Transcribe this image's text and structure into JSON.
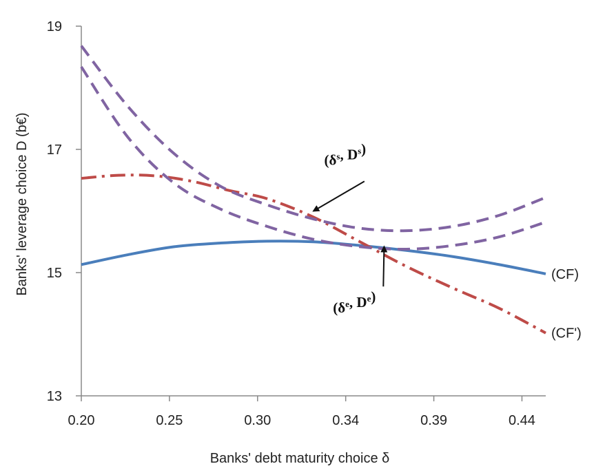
{
  "chart_data": {
    "type": "line",
    "xlabel": "Banks' debt maturity choice δ",
    "ylabel": "Banks' leverage choice D (b€)",
    "xlim": [
      0.2,
      0.45
    ],
    "ylim": [
      13,
      19
    ],
    "x_ticks": [
      "0.20",
      "0.25",
      "0.30",
      "0.34",
      "0.39",
      "0.44"
    ],
    "y_ticks": [
      "13",
      "15",
      "17",
      "19"
    ],
    "y_tick_values": [
      13,
      15,
      17,
      19
    ],
    "grid": false,
    "colors": {
      "cf": "#4a7ebb",
      "cf_prime": "#be4b48",
      "dashed": "#8064a2",
      "axis": "#888888",
      "arrow": "#111111"
    },
    "series": [
      {
        "name": "(CF)",
        "style": "solid",
        "x": [
          0.2,
          0.225,
          0.25,
          0.275,
          0.3,
          0.325,
          0.35,
          0.375,
          0.4,
          0.425,
          0.45
        ],
        "y": [
          15.13,
          15.29,
          15.42,
          15.48,
          15.51,
          15.5,
          15.44,
          15.36,
          15.26,
          15.13,
          14.98
        ]
      },
      {
        "name": "(CF')",
        "style": "dashdot",
        "x": [
          0.2,
          0.22,
          0.24,
          0.26,
          0.28,
          0.3,
          0.325,
          0.35,
          0.375,
          0.4,
          0.425,
          0.45
        ],
        "y": [
          16.53,
          16.58,
          16.57,
          16.48,
          16.33,
          16.2,
          15.9,
          15.5,
          15.1,
          14.75,
          14.42,
          14.02
        ]
      },
      {
        "name": "",
        "style": "dashed",
        "x": [
          0.2,
          0.225,
          0.25,
          0.275,
          0.3,
          0.325,
          0.35,
          0.375,
          0.4,
          0.425,
          0.45
        ],
        "y": [
          18.68,
          17.7,
          16.93,
          16.4,
          16.1,
          15.87,
          15.72,
          15.68,
          15.75,
          15.93,
          16.22
        ]
      },
      {
        "name": "",
        "style": "dashed",
        "x": [
          0.2,
          0.225,
          0.25,
          0.275,
          0.3,
          0.325,
          0.35,
          0.375,
          0.4,
          0.425,
          0.45
        ],
        "y": [
          18.34,
          17.2,
          16.45,
          16.03,
          15.75,
          15.54,
          15.42,
          15.38,
          15.44,
          15.58,
          15.82
        ]
      }
    ],
    "annotations": [
      {
        "id": "strategic",
        "main": "(δ",
        "sup1": "s",
        "mid": ", D",
        "sup2": "s",
        "end": ")",
        "point": [
          0.325,
          16.0
        ],
        "label_anchor": [
          0.342,
          16.75
        ]
      },
      {
        "id": "equilibrium",
        "main": "(δ",
        "sup1": "e",
        "mid": ", D",
        "sup2": "e",
        "end": ")",
        "point": [
          0.363,
          15.42
        ],
        "label_anchor": [
          0.347,
          14.35
        ]
      }
    ]
  }
}
